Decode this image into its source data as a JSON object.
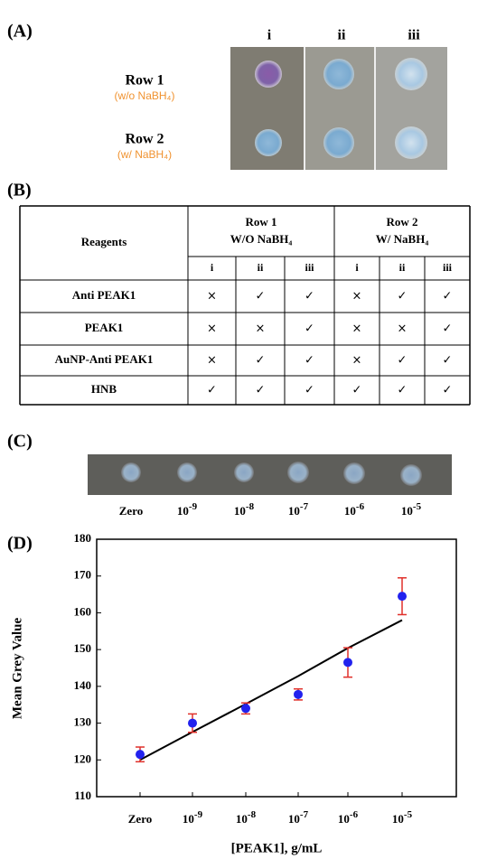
{
  "panel_a": {
    "label": "(A)",
    "columns": [
      "i",
      "ii",
      "iii"
    ],
    "rows": [
      {
        "name": "Row 1",
        "note": "(w/o NaBH₄)"
      },
      {
        "name": "Row 2",
        "note": "(w/  NaBH₄)"
      }
    ]
  },
  "panel_b": {
    "label": "(B)",
    "table": {
      "reagents_header": "Reagents",
      "groups": [
        {
          "title": "Row 1",
          "subtitle": "W/O NaBH₄"
        },
        {
          "title": "Row  2",
          "subtitle": "W/ NaBH₄"
        }
      ],
      "subcolumns": [
        "i",
        "ii",
        "iii",
        "i",
        "ii",
        "iii"
      ],
      "rows": [
        [
          "Anti PEAK1",
          "×",
          "✓",
          "✓",
          "×",
          "✓",
          "✓"
        ],
        [
          "PEAK1",
          "×",
          "×",
          "✓",
          "×",
          "×",
          "✓"
        ],
        [
          "AuNP-Anti PEAK1",
          "×",
          "✓",
          "✓",
          "×",
          "✓",
          "✓"
        ],
        [
          "HNB",
          "✓",
          "✓",
          "✓",
          "✓",
          "✓",
          "✓"
        ]
      ]
    }
  },
  "panel_c": {
    "label": "(C)",
    "labels": [
      "Zero",
      {
        "base": "10",
        "exp": "-9"
      },
      {
        "base": "10",
        "exp": "-8"
      },
      {
        "base": "10",
        "exp": "-7"
      },
      {
        "base": "10",
        "exp": "-6"
      },
      {
        "base": "10",
        "exp": "-5"
      }
    ]
  },
  "panel_d": {
    "label": "(D)",
    "chart_data": {
      "type": "scatter",
      "x_label": "[PEAK1], g/mL",
      "y_label": "Mean Grey Value",
      "categories": [
        "Zero",
        {
          "base": "10",
          "exp": "-9"
        },
        {
          "base": "10",
          "exp": "-8"
        },
        {
          "base": "10",
          "exp": "-7"
        },
        {
          "base": "10",
          "exp": "-6"
        },
        {
          "base": "10",
          "exp": "-5"
        }
      ],
      "values": [
        121.5,
        130,
        134,
        137.8,
        146.5,
        164.5
      ],
      "errors": [
        2,
        2.5,
        1.5,
        1.5,
        4,
        5
      ],
      "fit_values": [
        120,
        127.6,
        135.2,
        142.8,
        150.4,
        158
      ],
      "color": "#2222ee",
      "error_color": "#e0302a",
      "fit_color": "#000000",
      "ylim": [
        110,
        180
      ],
      "yticks": [
        110,
        120,
        130,
        140,
        150,
        160,
        170,
        180
      ]
    }
  }
}
